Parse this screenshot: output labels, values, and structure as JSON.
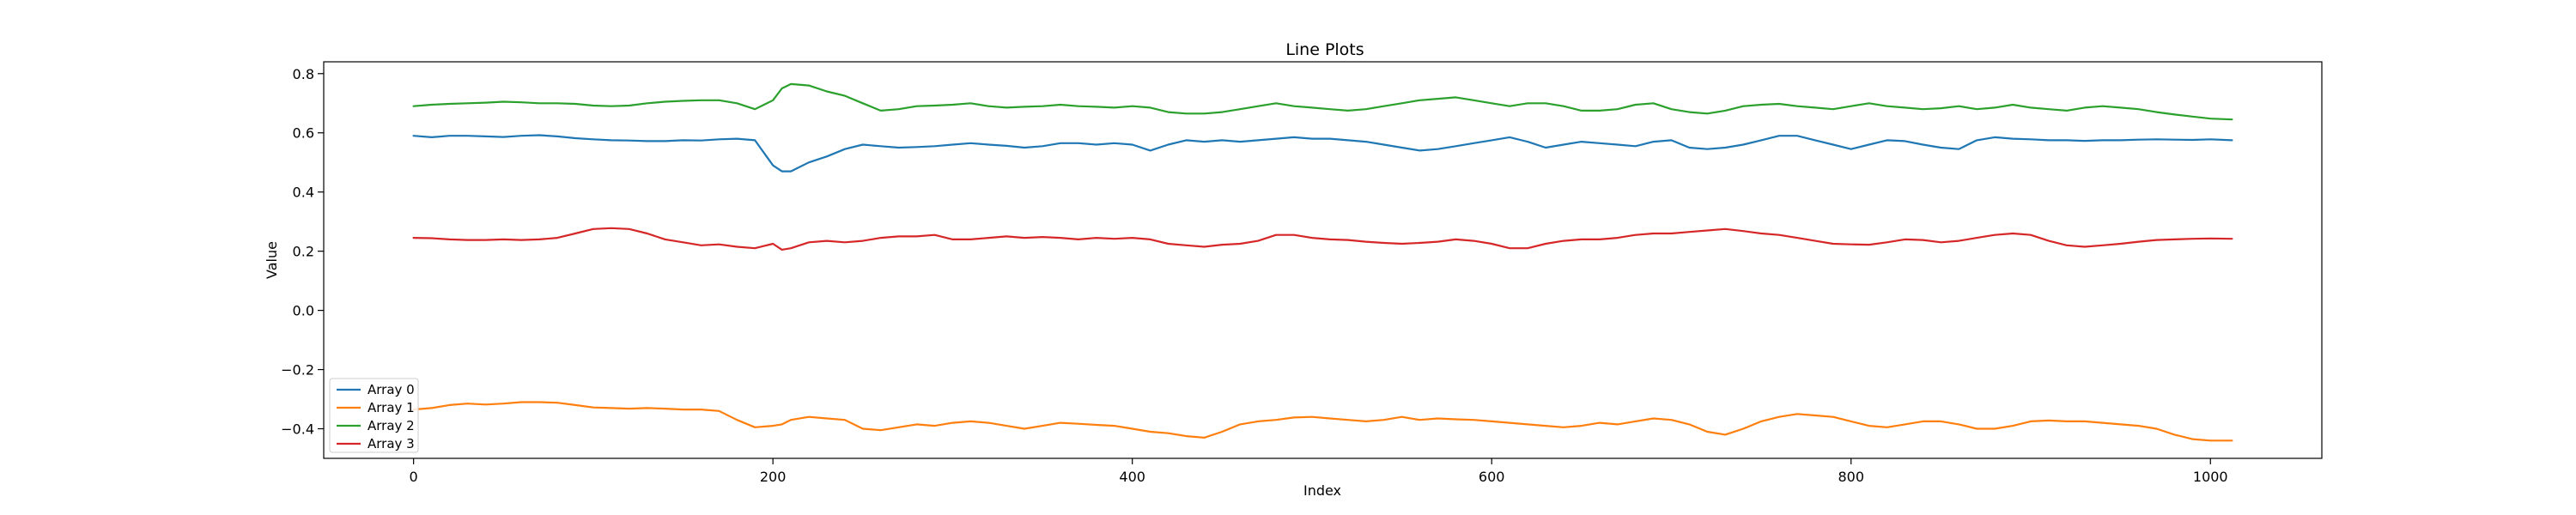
{
  "chart_data": {
    "type": "line",
    "title": "Line Plots",
    "xlabel": "Index",
    "ylabel": "Value",
    "xlim": [
      -50,
      1062
    ],
    "ylim": [
      -0.5,
      0.84
    ],
    "xticks": [
      0,
      200,
      400,
      600,
      800,
      1000
    ],
    "yticks": [
      -0.4,
      -0.2,
      0.0,
      0.2,
      0.4,
      0.6,
      0.8
    ],
    "ytick_labels": [
      "−0.4",
      "−0.2",
      "0.0",
      "0.2",
      "0.4",
      "0.6",
      "0.8"
    ],
    "grid": false,
    "legend_position": "lower-left",
    "x": [
      0,
      10,
      20,
      30,
      40,
      50,
      60,
      70,
      80,
      90,
      100,
      110,
      120,
      130,
      140,
      150,
      160,
      170,
      180,
      190,
      200,
      205,
      210,
      220,
      230,
      240,
      250,
      260,
      270,
      280,
      290,
      300,
      310,
      320,
      330,
      340,
      350,
      360,
      370,
      380,
      390,
      400,
      410,
      420,
      430,
      440,
      450,
      460,
      470,
      480,
      490,
      500,
      510,
      520,
      530,
      540,
      550,
      560,
      570,
      580,
      590,
      600,
      610,
      620,
      630,
      640,
      650,
      660,
      670,
      680,
      690,
      700,
      710,
      720,
      730,
      740,
      750,
      760,
      770,
      780,
      790,
      800,
      810,
      820,
      830,
      840,
      850,
      860,
      870,
      880,
      890,
      900,
      910,
      920,
      930,
      940,
      950,
      960,
      970,
      980,
      990,
      1000,
      1012
    ],
    "series": [
      {
        "name": "Array 0",
        "color": "#1f77b4",
        "values": [
          0.59,
          0.585,
          0.59,
          0.59,
          0.588,
          0.586,
          0.59,
          0.592,
          0.588,
          0.582,
          0.578,
          0.575,
          0.574,
          0.572,
          0.572,
          0.575,
          0.574,
          0.578,
          0.58,
          0.575,
          0.49,
          0.47,
          0.47,
          0.5,
          0.52,
          0.545,
          0.56,
          0.555,
          0.55,
          0.552,
          0.555,
          0.56,
          0.565,
          0.56,
          0.556,
          0.55,
          0.555,
          0.565,
          0.565,
          0.56,
          0.565,
          0.56,
          0.54,
          0.56,
          0.575,
          0.57,
          0.575,
          0.57,
          0.575,
          0.58,
          0.585,
          0.58,
          0.58,
          0.575,
          0.57,
          0.56,
          0.55,
          0.54,
          0.545,
          0.555,
          0.565,
          0.575,
          0.585,
          0.57,
          0.55,
          0.56,
          0.57,
          0.565,
          0.56,
          0.555,
          0.57,
          0.575,
          0.55,
          0.545,
          0.55,
          0.56,
          0.575,
          0.59,
          0.59,
          0.575,
          0.56,
          0.545,
          0.56,
          0.575,
          0.572,
          0.56,
          0.55,
          0.545,
          0.575,
          0.585,
          0.58,
          0.578,
          0.575,
          0.575,
          0.573,
          0.575,
          0.575,
          0.577,
          0.578,
          0.577,
          0.576,
          0.578,
          0.575
        ]
      },
      {
        "name": "Array 1",
        "color": "#ff7f0e",
        "values": [
          -0.335,
          -0.33,
          -0.32,
          -0.315,
          -0.318,
          -0.315,
          -0.31,
          -0.31,
          -0.312,
          -0.32,
          -0.328,
          -0.33,
          -0.332,
          -0.33,
          -0.332,
          -0.335,
          -0.335,
          -0.34,
          -0.37,
          -0.395,
          -0.39,
          -0.385,
          -0.37,
          -0.36,
          -0.365,
          -0.37,
          -0.4,
          -0.405,
          -0.395,
          -0.385,
          -0.39,
          -0.38,
          -0.375,
          -0.38,
          -0.39,
          -0.4,
          -0.39,
          -0.38,
          -0.383,
          -0.387,
          -0.39,
          -0.4,
          -0.41,
          -0.415,
          -0.425,
          -0.43,
          -0.41,
          -0.385,
          -0.375,
          -0.37,
          -0.362,
          -0.36,
          -0.365,
          -0.37,
          -0.375,
          -0.37,
          -0.36,
          -0.37,
          -0.365,
          -0.368,
          -0.37,
          -0.375,
          -0.38,
          -0.385,
          -0.39,
          -0.395,
          -0.39,
          -0.38,
          -0.385,
          -0.375,
          -0.365,
          -0.37,
          -0.385,
          -0.41,
          -0.42,
          -0.4,
          -0.375,
          -0.36,
          -0.35,
          -0.355,
          -0.36,
          -0.375,
          -0.39,
          -0.395,
          -0.385,
          -0.375,
          -0.375,
          -0.385,
          -0.4,
          -0.4,
          -0.39,
          -0.375,
          -0.372,
          -0.375,
          -0.375,
          -0.38,
          -0.385,
          -0.39,
          -0.4,
          -0.42,
          -0.435,
          -0.44,
          -0.44
        ]
      },
      {
        "name": "Array 2",
        "color": "#2ca02c",
        "values": [
          0.69,
          0.695,
          0.698,
          0.7,
          0.702,
          0.705,
          0.703,
          0.7,
          0.7,
          0.698,
          0.692,
          0.69,
          0.692,
          0.7,
          0.705,
          0.708,
          0.71,
          0.71,
          0.7,
          0.68,
          0.71,
          0.75,
          0.765,
          0.76,
          0.74,
          0.725,
          0.7,
          0.675,
          0.68,
          0.69,
          0.692,
          0.695,
          0.7,
          0.69,
          0.685,
          0.688,
          0.69,
          0.695,
          0.69,
          0.688,
          0.685,
          0.69,
          0.685,
          0.67,
          0.665,
          0.665,
          0.67,
          0.68,
          0.69,
          0.7,
          0.69,
          0.685,
          0.68,
          0.675,
          0.68,
          0.69,
          0.7,
          0.71,
          0.715,
          0.72,
          0.71,
          0.7,
          0.69,
          0.7,
          0.7,
          0.69,
          0.675,
          0.675,
          0.68,
          0.695,
          0.7,
          0.68,
          0.67,
          0.665,
          0.675,
          0.69,
          0.695,
          0.698,
          0.69,
          0.685,
          0.68,
          0.69,
          0.7,
          0.69,
          0.685,
          0.68,
          0.683,
          0.69,
          0.68,
          0.685,
          0.695,
          0.685,
          0.68,
          0.675,
          0.685,
          0.69,
          0.685,
          0.68,
          0.67,
          0.662,
          0.655,
          0.648,
          0.645
        ]
      },
      {
        "name": "Array 3",
        "color": "#d62728",
        "values": [
          0.245,
          0.244,
          0.24,
          0.238,
          0.238,
          0.24,
          0.238,
          0.24,
          0.245,
          0.26,
          0.275,
          0.278,
          0.275,
          0.26,
          0.24,
          0.23,
          0.22,
          0.223,
          0.215,
          0.21,
          0.225,
          0.205,
          0.21,
          0.23,
          0.235,
          0.23,
          0.235,
          0.245,
          0.25,
          0.25,
          0.255,
          0.24,
          0.24,
          0.245,
          0.25,
          0.245,
          0.248,
          0.245,
          0.24,
          0.245,
          0.242,
          0.245,
          0.24,
          0.225,
          0.22,
          0.215,
          0.222,
          0.225,
          0.235,
          0.255,
          0.255,
          0.245,
          0.24,
          0.238,
          0.232,
          0.228,
          0.225,
          0.228,
          0.232,
          0.24,
          0.235,
          0.225,
          0.21,
          0.21,
          0.225,
          0.235,
          0.24,
          0.24,
          0.245,
          0.255,
          0.26,
          0.26,
          0.265,
          0.27,
          0.275,
          0.268,
          0.26,
          0.255,
          0.245,
          0.235,
          0.225,
          0.223,
          0.222,
          0.23,
          0.24,
          0.238,
          0.23,
          0.235,
          0.245,
          0.255,
          0.26,
          0.255,
          0.235,
          0.22,
          0.215,
          0.22,
          0.225,
          0.232,
          0.238,
          0.24,
          0.242,
          0.243,
          0.242
        ]
      }
    ]
  }
}
